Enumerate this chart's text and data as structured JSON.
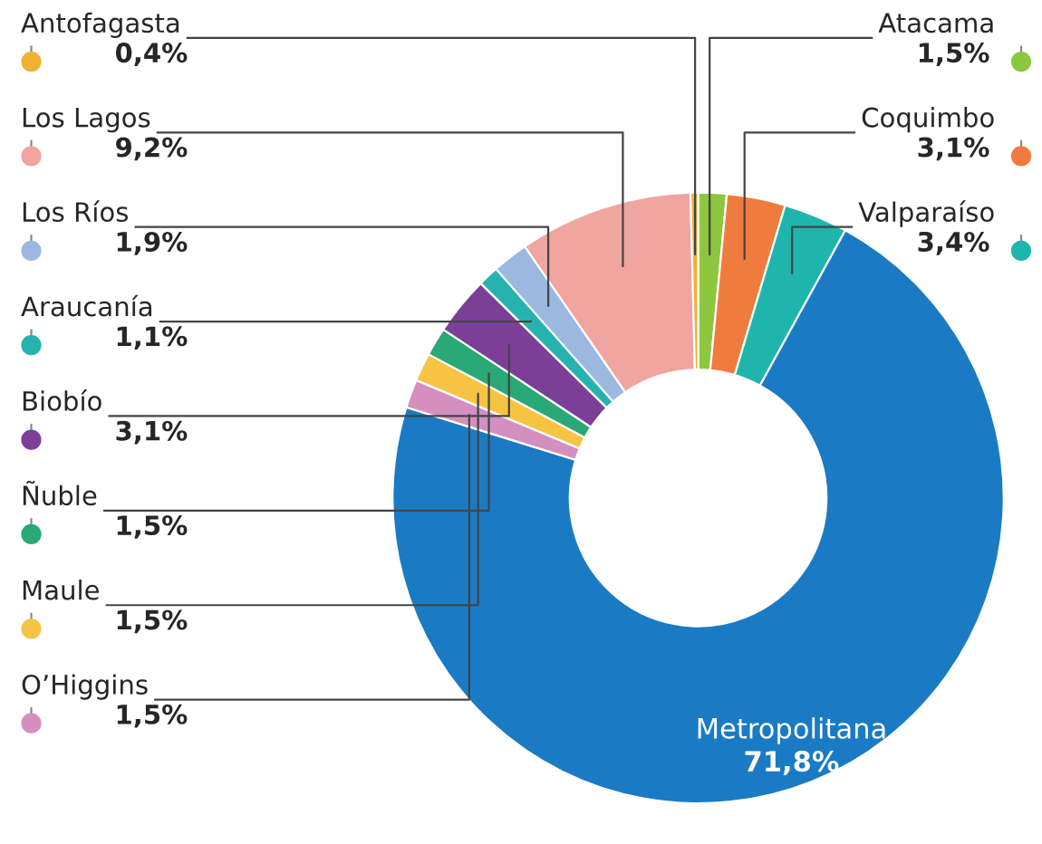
{
  "chart_data": {
    "type": "donut",
    "categories": [
      "Atacama",
      "Coquimbo",
      "Valparaíso",
      "Metropolitana",
      "O’Higgins",
      "Maule",
      "Ñuble",
      "Biobío",
      "Araucanía",
      "Los Ríos",
      "Los Lagos",
      "Antofagasta"
    ],
    "values": [
      1.5,
      3.1,
      3.4,
      71.8,
      1.5,
      1.5,
      1.5,
      3.1,
      1.1,
      1.9,
      9.2,
      0.4
    ],
    "value_labels": [
      "1,5%",
      "3,1%",
      "3,4%",
      "71,8%",
      "1,5%",
      "1,5%",
      "1,5%",
      "3,1%",
      "1,1%",
      "1,9%",
      "9,2%",
      "0,4%"
    ],
    "colors": [
      "#8dc63f",
      "#f07b3f",
      "#1fb5ad",
      "#1a7bc4",
      "#d48fc0",
      "#f6c343",
      "#2aa876",
      "#7b3f98",
      "#26b3b0",
      "#9ab8e0",
      "#f0a5a0",
      "#f2b134"
    ]
  }
}
